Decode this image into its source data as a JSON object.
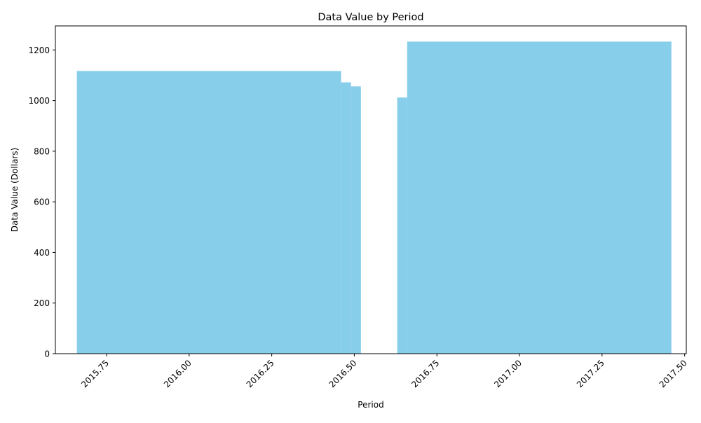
{
  "chart_data": {
    "type": "bar",
    "title": "Data Value by Period",
    "xlabel": "Period",
    "ylabel": "Data Value (Dollars)",
    "bar_color": "#87CEEB",
    "xlim": [
      2015.595,
      2017.505
    ],
    "ylim": [
      0,
      1295
    ],
    "xticks": [
      {
        "value": 2015.75,
        "label": "2015.75"
      },
      {
        "value": 2016.0,
        "label": "2016.00"
      },
      {
        "value": 2016.25,
        "label": "2016.25"
      },
      {
        "value": 2016.5,
        "label": "2016.50"
      },
      {
        "value": 2016.75,
        "label": "2016.75"
      },
      {
        "value": 2017.0,
        "label": "2017.00"
      },
      {
        "value": 2017.25,
        "label": "2017.25"
      },
      {
        "value": 2017.5,
        "label": "2017.50"
      }
    ],
    "yticks": [
      {
        "value": 0,
        "label": "0"
      },
      {
        "value": 200,
        "label": "200"
      },
      {
        "value": 400,
        "label": "400"
      },
      {
        "value": 600,
        "label": "600"
      },
      {
        "value": 800,
        "label": "800"
      },
      {
        "value": 1000,
        "label": "1000"
      },
      {
        "value": 1200,
        "label": "1200"
      }
    ],
    "bars": [
      {
        "start": 2015.66,
        "end": 2016.46,
        "value": 1117
      },
      {
        "start": 2016.46,
        "end": 2016.49,
        "value": 1072
      },
      {
        "start": 2016.49,
        "end": 2016.52,
        "value": 1056
      },
      {
        "start": 2016.63,
        "end": 2016.66,
        "value": 1012
      },
      {
        "start": 2016.66,
        "end": 2017.46,
        "value": 1233
      }
    ]
  }
}
